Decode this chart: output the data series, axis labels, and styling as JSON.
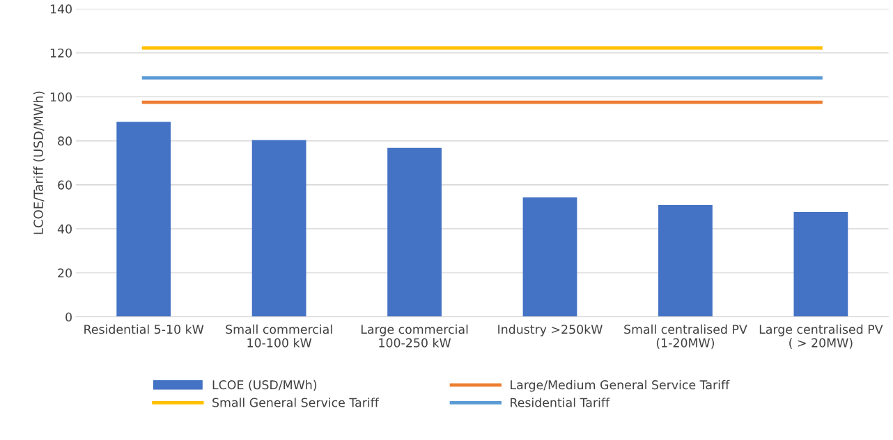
{
  "chart_data": {
    "type": "bar",
    "ylabel": "LCOE/Tariff (USD/MWh)",
    "categories": [
      "Residential 5-10 kW",
      "Small commercial\n10-100 kW",
      "Large commercial\n100-250 kW",
      "Industry >250kW",
      "Small centralised PV\n(1-20MW)",
      "Large centralised PV\n( > 20MW)"
    ],
    "series": [
      {
        "name": "LCOE (USD/MWh)",
        "color": "#4472c4",
        "values": [
          88.6,
          80.3,
          76.8,
          54.3,
          50.8,
          47.6
        ]
      },
      {
        "name": "Large/Medium General Service Tariff",
        "type": "line",
        "color": "#ed7d31",
        "values": [
          97.5,
          97.5,
          97.5,
          97.5,
          97.5,
          97.5
        ]
      },
      {
        "name": "Small General Service Tariff",
        "type": "line",
        "color": "#ffc000",
        "values": [
          122.2,
          122.2,
          122.2,
          122.2,
          122.2,
          122.2
        ]
      },
      {
        "name": "Residential Tariff",
        "type": "line",
        "color": "#5b9bd5",
        "values": [
          108.6,
          108.6,
          108.6,
          108.6,
          108.6,
          108.6
        ]
      }
    ],
    "ylim": [
      0,
      140
    ],
    "yticks": [
      0,
      20,
      40,
      60,
      80,
      100,
      120,
      140
    ],
    "grid": "y",
    "legend": "bottom"
  }
}
